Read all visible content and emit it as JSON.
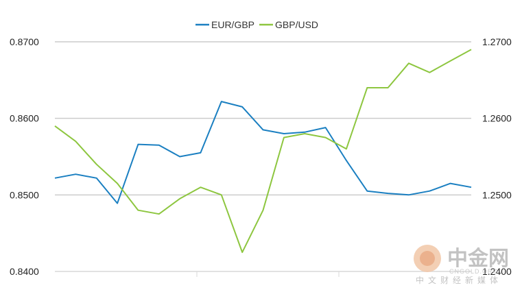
{
  "chart_data": {
    "type": "line",
    "title": "",
    "xlabel": "",
    "ylabel": "",
    "legend_position": "top-center",
    "grid": "horizontal",
    "x": [
      0,
      5,
      10,
      15,
      20,
      25,
      30,
      35,
      40,
      45,
      50,
      55,
      60,
      65,
      70,
      75,
      80,
      85,
      90,
      95,
      100
    ],
    "y_left_lim": [
      0.84,
      0.87
    ],
    "y_left_ticks": [
      "0.8400",
      "0.8500",
      "0.8600",
      "0.8700"
    ],
    "y_right_lim": [
      1.24,
      1.27
    ],
    "y_right_ticks": [
      "1.2400",
      "1.2500",
      "1.2600",
      "1.2700"
    ],
    "series": [
      {
        "name": "EUR/GBP",
        "axis": "left",
        "color": "#1a7fc1",
        "values": [
          0.8522,
          0.8527,
          0.8522,
          0.8489,
          0.8566,
          0.8565,
          0.855,
          0.8555,
          0.8622,
          0.8615,
          0.8585,
          0.858,
          0.8582,
          0.8588,
          0.8545,
          0.8505,
          0.8502,
          0.85,
          0.8505,
          0.8515,
          0.851
        ]
      },
      {
        "name": "GBP/USD",
        "axis": "right",
        "color": "#8dc63f",
        "values": [
          1.259,
          1.257,
          1.254,
          1.2515,
          1.248,
          1.2475,
          1.2495,
          1.251,
          1.25,
          1.2425,
          1.248,
          1.2575,
          1.258,
          1.2575,
          1.256,
          1.264,
          1.264,
          1.2672,
          1.266,
          1.2675,
          1.269
        ]
      }
    ]
  },
  "watermark": {
    "logo_text": "中金网",
    "url_text": "CNGOLD.ORG",
    "subtitle": "中文财经新媒体"
  }
}
